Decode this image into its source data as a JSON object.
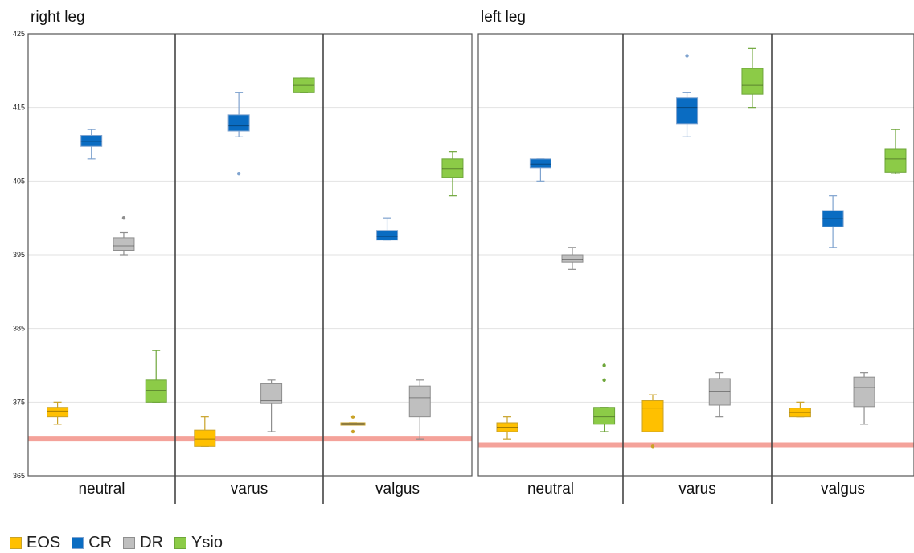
{
  "chart_data": {
    "type": "box",
    "ylim": [
      365,
      425
    ],
    "y_ticks": [
      365,
      375,
      385,
      395,
      405,
      415,
      425
    ],
    "groups": [
      "neutral",
      "varus",
      "valgus"
    ],
    "series_names": [
      "EOS",
      "CR",
      "DR",
      "Ysio"
    ],
    "colors": {
      "EOS": {
        "fill": "#FFC000",
        "stroke": "#C9A227"
      },
      "CR": {
        "fill": "#0A6CC2",
        "stroke": "#7FA3CF"
      },
      "DR": {
        "fill": "#BFBFBF",
        "stroke": "#8E8E8E"
      },
      "Ysio": {
        "fill": "#8CCB47",
        "stroke": "#6EA63A"
      },
      "reference_line": "#F4A29A"
    },
    "panels": [
      {
        "title": "right leg",
        "reference_value": 370,
        "boxes": [
          {
            "group": "neutral",
            "series": "EOS",
            "min": 372,
            "q1": 373,
            "median": 373.8,
            "q3": 374.3,
            "max": 375,
            "outliers": []
          },
          {
            "group": "neutral",
            "series": "CR",
            "min": 408,
            "q1": 409.7,
            "median": 410.4,
            "q3": 411.2,
            "max": 412,
            "outliers": []
          },
          {
            "group": "neutral",
            "series": "DR",
            "min": 395,
            "q1": 395.6,
            "median": 396.2,
            "q3": 397.3,
            "max": 398,
            "outliers": [
              400
            ]
          },
          {
            "group": "neutral",
            "series": "Ysio",
            "min": 375,
            "q1": 375,
            "median": 376.6,
            "q3": 378,
            "max": 382,
            "outliers": []
          },
          {
            "group": "varus",
            "series": "EOS",
            "min": 369,
            "q1": 369,
            "median": 370,
            "q3": 371.2,
            "max": 373,
            "outliers": []
          },
          {
            "group": "varus",
            "series": "CR",
            "min": 411,
            "q1": 411.8,
            "median": 412.5,
            "q3": 414,
            "max": 417,
            "outliers": [
              406
            ]
          },
          {
            "group": "varus",
            "series": "DR",
            "min": 371,
            "q1": 374.8,
            "median": 375.2,
            "q3": 377.5,
            "max": 378,
            "outliers": []
          },
          {
            "group": "varus",
            "series": "Ysio",
            "min": 417,
            "q1": 417,
            "median": 418,
            "q3": 419,
            "max": 419,
            "outliers": []
          },
          {
            "group": "valgus",
            "series": "EOS",
            "min": 372.2,
            "q1": 372.2,
            "median": 372.2,
            "q3": 372.2,
            "max": 372.2,
            "outliers": [
              373,
              371
            ]
          },
          {
            "group": "valgus",
            "series": "CR",
            "min": 397,
            "q1": 397,
            "median": 397.5,
            "q3": 398.3,
            "max": 400,
            "outliers": []
          },
          {
            "group": "valgus",
            "series": "DR",
            "min": 370,
            "q1": 373,
            "median": 375.6,
            "q3": 377.2,
            "max": 378,
            "outliers": []
          },
          {
            "group": "valgus",
            "series": "Ysio",
            "min": 403,
            "q1": 405.5,
            "median": 406.7,
            "q3": 408,
            "max": 409,
            "outliers": []
          }
        ]
      },
      {
        "title": "left leg",
        "reference_value": 369.2,
        "boxes": [
          {
            "group": "neutral",
            "series": "EOS",
            "min": 370,
            "q1": 371,
            "median": 371.6,
            "q3": 372.2,
            "max": 373,
            "outliers": []
          },
          {
            "group": "neutral",
            "series": "CR",
            "min": 405,
            "q1": 406.8,
            "median": 407.3,
            "q3": 408,
            "max": 408,
            "outliers": []
          },
          {
            "group": "neutral",
            "series": "DR",
            "min": 393,
            "q1": 394,
            "median": 394.4,
            "q3": 395,
            "max": 396,
            "outliers": []
          },
          {
            "group": "neutral",
            "series": "Ysio",
            "min": 371,
            "q1": 372,
            "median": 373,
            "q3": 374.3,
            "max": 374.3,
            "outliers": [
              378,
              380
            ]
          },
          {
            "group": "varus",
            "series": "EOS",
            "min": 371,
            "q1": 371,
            "median": 374.2,
            "q3": 375.2,
            "max": 376,
            "outliers": [
              369
            ]
          },
          {
            "group": "varus",
            "series": "CR",
            "min": 411,
            "q1": 412.8,
            "median": 415,
            "q3": 416.3,
            "max": 417,
            "outliers": [
              422
            ]
          },
          {
            "group": "varus",
            "series": "DR",
            "min": 373,
            "q1": 374.6,
            "median": 376.4,
            "q3": 378.2,
            "max": 379,
            "outliers": []
          },
          {
            "group": "varus",
            "series": "Ysio",
            "min": 415,
            "q1": 416.8,
            "median": 418,
            "q3": 420.3,
            "max": 423,
            "outliers": []
          },
          {
            "group": "valgus",
            "series": "EOS",
            "min": 373,
            "q1": 373,
            "median": 373.6,
            "q3": 374.2,
            "max": 375,
            "outliers": []
          },
          {
            "group": "valgus",
            "series": "CR",
            "min": 396,
            "q1": 398.8,
            "median": 399.9,
            "q3": 401,
            "max": 403,
            "outliers": []
          },
          {
            "group": "valgus",
            "series": "DR",
            "min": 372,
            "q1": 374.4,
            "median": 377,
            "q3": 378.4,
            "max": 379,
            "outliers": []
          },
          {
            "group": "valgus",
            "series": "Ysio",
            "min": 406,
            "q1": 406.2,
            "median": 408,
            "q3": 409.4,
            "max": 412,
            "outliers": []
          }
        ]
      }
    ]
  }
}
